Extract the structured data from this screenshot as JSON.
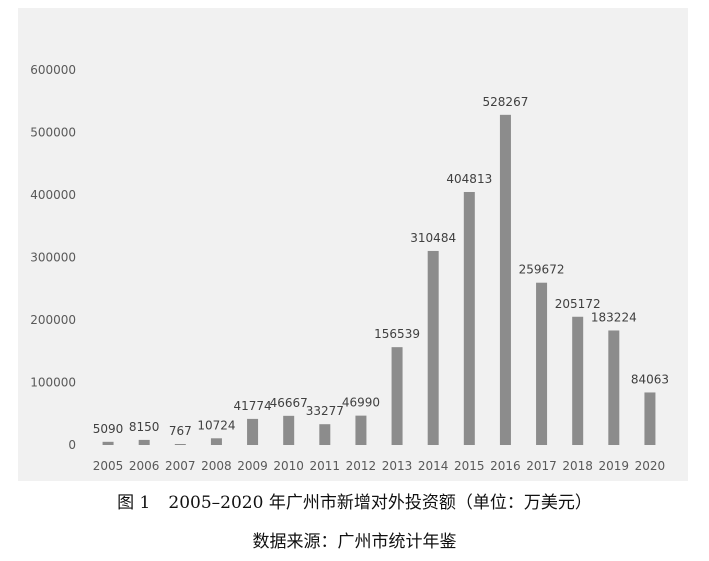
{
  "chart_data": {
    "type": "bar",
    "categories": [
      "2005",
      "2006",
      "2007",
      "2008",
      "2009",
      "2010",
      "2011",
      "2012",
      "2013",
      "2014",
      "2015",
      "2016",
      "2017",
      "2018",
      "2019",
      "2020"
    ],
    "values": [
      5090,
      8150,
      767,
      10724,
      41774,
      46667,
      33277,
      46990,
      156539,
      310484,
      404813,
      528267,
      259672,
      205172,
      183224,
      84063
    ],
    "y_ticks": [
      0,
      100000,
      200000,
      300000,
      400000,
      500000,
      600000
    ],
    "ylim": [
      0,
      600000
    ],
    "grid": false,
    "colors": {
      "bar": "#8c8c8c",
      "background": "#f1f1f1",
      "tick_text": "#595959",
      "label_text": "#404040"
    }
  },
  "caption": {
    "figure_no": "图 1",
    "title": "2005–2020 年广州市新增对外投资额（单位：万美元）",
    "source": "数据来源：广州市统计年鉴"
  }
}
